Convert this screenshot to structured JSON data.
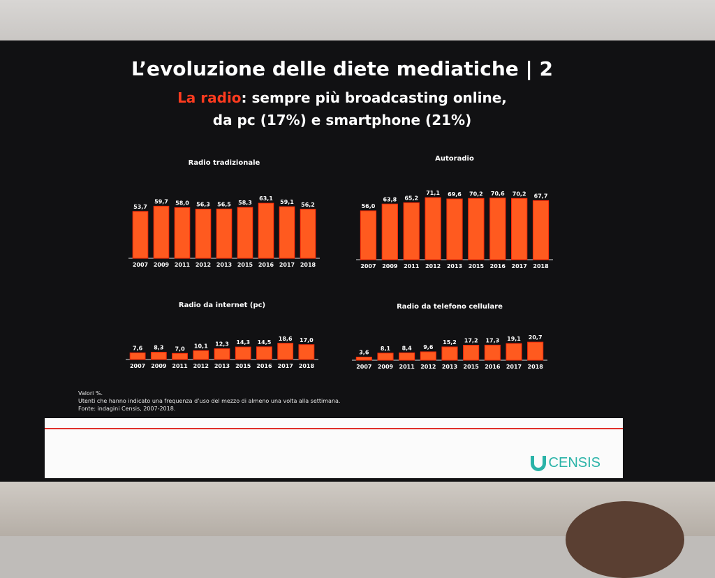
{
  "slide": {
    "title": "L’evoluzione delle diete mediatiche | 2",
    "subtitle_highlight": "La radio",
    "subtitle_rest": ": sempre più broadcasting online,",
    "subtitle_line2": "da pc (17%) e smartphone (21%)"
  },
  "notes": [
    "Valori %.",
    "Utenti che hanno indicato una frequenza d’uso del mezzo di almeno una volta alla settimana.",
    "Fonte: indagini Censis, 2007-2018."
  ],
  "logo": {
    "text": "CENSIS"
  },
  "colors": {
    "bar": "#ff5a1f",
    "bar_stroke": "#ff2a0a",
    "accent": "#ff3b1f",
    "logo": "#2ab3a8"
  },
  "chart_data": [
    {
      "type": "bar",
      "title": "Radio tradizionale",
      "categories": [
        "2007",
        "2009",
        "2011",
        "2012",
        "2013",
        "2015",
        "2016",
        "2017",
        "2018"
      ],
      "values": [
        53.7,
        59.7,
        58.0,
        56.3,
        56.5,
        58.3,
        63.1,
        59.1,
        56.2
      ],
      "labels": [
        "53,7",
        "59,7",
        "58,0",
        "56,3",
        "56,5",
        "58,3",
        "63,1",
        "59,1",
        "56,2"
      ],
      "ylim": [
        0,
        80
      ]
    },
    {
      "type": "bar",
      "title": "Autoradio",
      "categories": [
        "2007",
        "2009",
        "2011",
        "2012",
        "2013",
        "2015",
        "2016",
        "2017",
        "2018"
      ],
      "values": [
        56.0,
        63.8,
        65.2,
        71.1,
        69.6,
        70.2,
        70.6,
        70.2,
        67.7
      ],
      "labels": [
        "56,0",
        "63,8",
        "65,2",
        "71,1",
        "69,6",
        "70,2",
        "70,6",
        "70,2",
        "67,7"
      ],
      "ylim": [
        0,
        80
      ]
    },
    {
      "type": "bar",
      "title": "Radio da internet (pc)",
      "categories": [
        "2007",
        "2009",
        "2011",
        "2012",
        "2013",
        "2015",
        "2016",
        "2017",
        "2018"
      ],
      "values": [
        7.6,
        8.3,
        7.0,
        10.1,
        12.3,
        14.3,
        14.5,
        18.6,
        17.0
      ],
      "labels": [
        "7,6",
        "8,3",
        "7,0",
        "10,1",
        "12,3",
        "14,3",
        "14,5",
        "18,6",
        "17,0"
      ],
      "ylim": [
        0,
        80
      ]
    },
    {
      "type": "bar",
      "title": "Radio da telefono cellulare",
      "categories": [
        "2007",
        "2009",
        "2011",
        "2012",
        "2013",
        "2015",
        "2016",
        "2017",
        "2018"
      ],
      "values": [
        3.6,
        8.1,
        8.4,
        9.6,
        15.2,
        17.2,
        17.3,
        19.1,
        20.7
      ],
      "labels": [
        "3,6",
        "8,1",
        "8,4",
        "9,6",
        "15,2",
        "17,2",
        "17,3",
        "19,1",
        "20,7"
      ],
      "ylim": [
        0,
        80
      ]
    }
  ]
}
